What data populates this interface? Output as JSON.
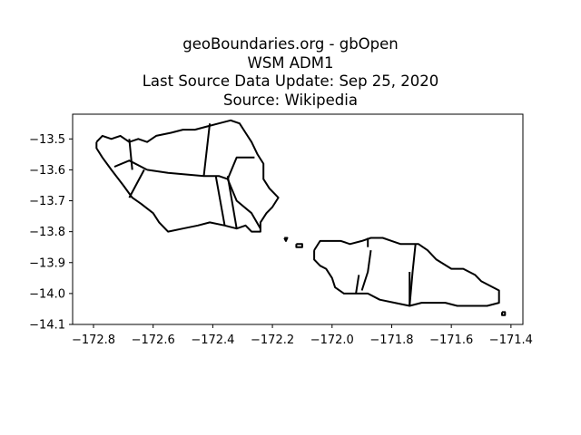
{
  "title": {
    "line1": "geoBoundaries.org - gbOpen",
    "line2": "WSM ADM1",
    "line3": "Last Source Data Update: Sep 25, 2020",
    "line4": "Source: Wikipedia"
  },
  "chart_data": {
    "type": "map",
    "xlim": [
      -172.87,
      -171.36
    ],
    "ylim": [
      -14.1,
      -13.42
    ],
    "grid": false,
    "xticks": [
      {
        "value": -172.8,
        "label": "−172.8"
      },
      {
        "value": -172.6,
        "label": "−172.6"
      },
      {
        "value": -172.4,
        "label": "−172.4"
      },
      {
        "value": -172.2,
        "label": "−172.2"
      },
      {
        "value": -172.0,
        "label": "−172.0"
      },
      {
        "value": -171.8,
        "label": "−171.8"
      },
      {
        "value": -171.6,
        "label": "−171.6"
      },
      {
        "value": -171.4,
        "label": "−171.4"
      }
    ],
    "yticks": [
      {
        "value": -13.5,
        "label": "−13.5"
      },
      {
        "value": -13.6,
        "label": "−13.6"
      },
      {
        "value": -13.7,
        "label": "−13.7"
      },
      {
        "value": -13.8,
        "label": "−13.8"
      },
      {
        "value": -13.9,
        "label": "−13.9"
      },
      {
        "value": -14.0,
        "label": "−14.0"
      },
      {
        "value": -14.1,
        "label": "−14.1"
      }
    ],
    "boundaries": [
      {
        "name": "savaii-outline",
        "coords": [
          [
            -172.79,
            -13.51
          ],
          [
            -172.77,
            -13.49
          ],
          [
            -172.74,
            -13.5
          ],
          [
            -172.71,
            -13.49
          ],
          [
            -172.68,
            -13.51
          ],
          [
            -172.65,
            -13.5
          ],
          [
            -172.62,
            -13.51
          ],
          [
            -172.59,
            -13.49
          ],
          [
            -172.54,
            -13.48
          ],
          [
            -172.5,
            -13.47
          ],
          [
            -172.46,
            -13.47
          ],
          [
            -172.42,
            -13.46
          ],
          [
            -172.38,
            -13.45
          ],
          [
            -172.34,
            -13.44
          ],
          [
            -172.31,
            -13.45
          ],
          [
            -172.29,
            -13.48
          ],
          [
            -172.27,
            -13.51
          ],
          [
            -172.25,
            -13.55
          ],
          [
            -172.23,
            -13.58
          ],
          [
            -172.23,
            -13.63
          ],
          [
            -172.21,
            -13.66
          ],
          [
            -172.18,
            -13.69
          ],
          [
            -172.2,
            -13.72
          ],
          [
            -172.22,
            -13.74
          ],
          [
            -172.24,
            -13.77
          ],
          [
            -172.24,
            -13.8
          ],
          [
            -172.27,
            -13.8
          ],
          [
            -172.29,
            -13.78
          ],
          [
            -172.32,
            -13.79
          ],
          [
            -172.36,
            -13.78
          ],
          [
            -172.41,
            -13.77
          ],
          [
            -172.45,
            -13.78
          ],
          [
            -172.5,
            -13.79
          ],
          [
            -172.55,
            -13.8
          ],
          [
            -172.58,
            -13.77
          ],
          [
            -172.6,
            -13.74
          ],
          [
            -172.64,
            -13.71
          ],
          [
            -172.67,
            -13.69
          ],
          [
            -172.7,
            -13.65
          ],
          [
            -172.74,
            -13.6
          ],
          [
            -172.77,
            -13.56
          ],
          [
            -172.79,
            -13.53
          ],
          [
            -172.79,
            -13.51
          ]
        ]
      },
      {
        "name": "savaii-division-1",
        "coords": [
          [
            -172.73,
            -13.59
          ],
          [
            -172.68,
            -13.57
          ],
          [
            -172.62,
            -13.6
          ]
        ]
      },
      {
        "name": "savaii-division-2",
        "coords": [
          [
            -172.68,
            -13.5
          ],
          [
            -172.67,
            -13.6
          ]
        ]
      },
      {
        "name": "savaii-division-3",
        "coords": [
          [
            -172.63,
            -13.6
          ],
          [
            -172.68,
            -13.69
          ]
        ]
      },
      {
        "name": "savaii-division-4",
        "coords": [
          [
            -172.62,
            -13.6
          ],
          [
            -172.55,
            -13.61
          ],
          [
            -172.43,
            -13.62
          ],
          [
            -172.38,
            -13.62
          ],
          [
            -172.35,
            -13.63
          ]
        ]
      },
      {
        "name": "savaii-division-5",
        "coords": [
          [
            -172.41,
            -13.45
          ],
          [
            -172.43,
            -13.62
          ]
        ]
      },
      {
        "name": "savaii-division-6",
        "coords": [
          [
            -172.39,
            -13.62
          ],
          [
            -172.36,
            -13.78
          ]
        ]
      },
      {
        "name": "savaii-division-7",
        "coords": [
          [
            -172.35,
            -13.62
          ],
          [
            -172.32,
            -13.79
          ]
        ]
      },
      {
        "name": "savaii-division-8",
        "coords": [
          [
            -172.35,
            -13.63
          ],
          [
            -172.32,
            -13.7
          ],
          [
            -172.27,
            -13.74
          ],
          [
            -172.24,
            -13.79
          ]
        ]
      },
      {
        "name": "savaii-division-9",
        "coords": [
          [
            -172.35,
            -13.63
          ],
          [
            -172.32,
            -13.56
          ],
          [
            -172.26,
            -13.56
          ]
        ]
      },
      {
        "name": "apolima",
        "coords": [
          [
            -172.16,
            -13.82
          ],
          [
            -172.15,
            -13.82
          ],
          [
            -172.155,
            -13.83
          ],
          [
            -172.16,
            -13.82
          ]
        ]
      },
      {
        "name": "manono",
        "coords": [
          [
            -172.12,
            -13.84
          ],
          [
            -172.1,
            -13.84
          ],
          [
            -172.1,
            -13.85
          ],
          [
            -172.12,
            -13.85
          ],
          [
            -172.12,
            -13.84
          ]
        ]
      },
      {
        "name": "upolu-outline",
        "coords": [
          [
            -172.06,
            -13.86
          ],
          [
            -172.04,
            -13.83
          ],
          [
            -172.0,
            -13.83
          ],
          [
            -171.97,
            -13.83
          ],
          [
            -171.94,
            -13.84
          ],
          [
            -171.9,
            -13.83
          ],
          [
            -171.87,
            -13.82
          ],
          [
            -171.83,
            -13.82
          ],
          [
            -171.8,
            -13.83
          ],
          [
            -171.77,
            -13.84
          ],
          [
            -171.74,
            -13.84
          ],
          [
            -171.71,
            -13.84
          ],
          [
            -171.68,
            -13.86
          ],
          [
            -171.65,
            -13.89
          ],
          [
            -171.6,
            -13.92
          ],
          [
            -171.56,
            -13.92
          ],
          [
            -171.52,
            -13.94
          ],
          [
            -171.5,
            -13.96
          ],
          [
            -171.46,
            -13.98
          ],
          [
            -171.44,
            -13.99
          ],
          [
            -171.44,
            -14.03
          ],
          [
            -171.48,
            -14.04
          ],
          [
            -171.52,
            -14.04
          ],
          [
            -171.58,
            -14.04
          ],
          [
            -171.62,
            -14.03
          ],
          [
            -171.67,
            -14.03
          ],
          [
            -171.7,
            -14.03
          ],
          [
            -171.74,
            -14.04
          ],
          [
            -171.79,
            -14.03
          ],
          [
            -171.84,
            -14.02
          ],
          [
            -171.88,
            -14.0
          ],
          [
            -171.92,
            -14.0
          ],
          [
            -171.96,
            -14.0
          ],
          [
            -171.99,
            -13.98
          ],
          [
            -172.0,
            -13.95
          ],
          [
            -172.02,
            -13.92
          ],
          [
            -172.04,
            -13.91
          ],
          [
            -172.06,
            -13.89
          ],
          [
            -172.06,
            -13.86
          ]
        ]
      },
      {
        "name": "upolu-division-1",
        "coords": [
          [
            -171.88,
            -13.82
          ],
          [
            -171.88,
            -13.85
          ]
        ]
      },
      {
        "name": "upolu-division-2",
        "coords": [
          [
            -171.87,
            -13.86
          ],
          [
            -171.88,
            -13.93
          ],
          [
            -171.9,
            -13.99
          ]
        ]
      },
      {
        "name": "upolu-division-3",
        "coords": [
          [
            -171.91,
            -13.94
          ],
          [
            -171.92,
            -14.0
          ]
        ]
      },
      {
        "name": "upolu-division-4",
        "coords": [
          [
            -171.72,
            -13.84
          ],
          [
            -171.73,
            -13.93
          ],
          [
            -171.74,
            -14.04
          ]
        ]
      },
      {
        "name": "upolu-division-5",
        "coords": [
          [
            -171.74,
            -13.93
          ],
          [
            -171.74,
            -14.04
          ]
        ]
      },
      {
        "name": "nuutele",
        "coords": [
          [
            -171.43,
            -14.06
          ],
          [
            -171.42,
            -14.06
          ],
          [
            -171.42,
            -14.07
          ],
          [
            -171.43,
            -14.07
          ],
          [
            -171.43,
            -14.06
          ]
        ]
      }
    ]
  }
}
